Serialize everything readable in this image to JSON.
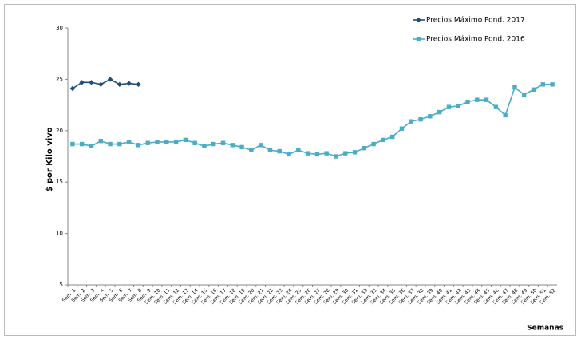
{
  "chart_data": {
    "type": "line",
    "y_label": "$ por Kilo vivo",
    "x_label": "Semanas",
    "categories": [
      "Sem. 1",
      "Sem. 2",
      "Sem. 3",
      "Sem. 4",
      "Sem. 5",
      "Sem. 6",
      "Sem. 7",
      "Sem. 8",
      "Sem. 9",
      "Sem. 10",
      "Sem. 11",
      "Sem. 12",
      "Sem. 13",
      "Sem. 14",
      "Sem. 15",
      "Sem. 16",
      "Sem. 17",
      "Sem. 18",
      "Sem. 19",
      "Sem. 20",
      "Sem. 21",
      "Sem. 22",
      "Sem. 23",
      "Sem. 24",
      "Sem. 25",
      "Sem. 26",
      "Sem. 27",
      "Sem. 28",
      "Sem. 29",
      "Sem. 30",
      "Sem. 31",
      "Sem. 32",
      "Sem. 33",
      "Sem. 34",
      "Sem. 35",
      "Sem. 36",
      "Sem. 37",
      "Sem. 38",
      "Sem. 39",
      "Sem. 40",
      "Sem. 41",
      "Sem. 42",
      "Sem. 43",
      "Sem. 44",
      "Sem. 45",
      "Sem. 46",
      "Sem. 47",
      "Sem. 48",
      "Sem. 49",
      "Sem. 50",
      "Sem. 51",
      "Sem. 52"
    ],
    "series": [
      {
        "name": "Precios Máximo Pond. 2017",
        "color": "#1f4e79",
        "marker": "diamond",
        "values": [
          24.1,
          24.7,
          24.7,
          24.5,
          25.0,
          24.5,
          24.6,
          24.5,
          null,
          null,
          null,
          null,
          null,
          null,
          null,
          null,
          null,
          null,
          null,
          null,
          null,
          null,
          null,
          null,
          null,
          null,
          null,
          null,
          null,
          null,
          null,
          null,
          null,
          null,
          null,
          null,
          null,
          null,
          null,
          null,
          null,
          null,
          null,
          null,
          null,
          null,
          null,
          null,
          null,
          null,
          null,
          null
        ]
      },
      {
        "name": "Precios Máximo Pond. 2016",
        "color": "#4bacc6",
        "marker": "square",
        "values": [
          18.7,
          18.7,
          18.5,
          19.0,
          18.7,
          18.7,
          18.9,
          18.6,
          18.8,
          18.9,
          18.9,
          18.9,
          19.1,
          18.8,
          18.5,
          18.7,
          18.8,
          18.6,
          18.4,
          18.1,
          18.6,
          18.1,
          18.0,
          17.7,
          18.1,
          17.8,
          17.7,
          17.8,
          17.5,
          17.8,
          17.9,
          18.3,
          18.7,
          19.1,
          19.4,
          20.2,
          20.9,
          21.1,
          21.4,
          21.8,
          22.3,
          22.4,
          22.8,
          23.0,
          23.0,
          22.3,
          21.5,
          24.2,
          23.5,
          24.0,
          24.5,
          24.5
        ]
      }
    ],
    "ylim": [
      5,
      30
    ],
    "yticks": [
      5,
      10,
      15,
      20,
      25,
      30
    ],
    "grid": false,
    "legend": "top-right"
  }
}
